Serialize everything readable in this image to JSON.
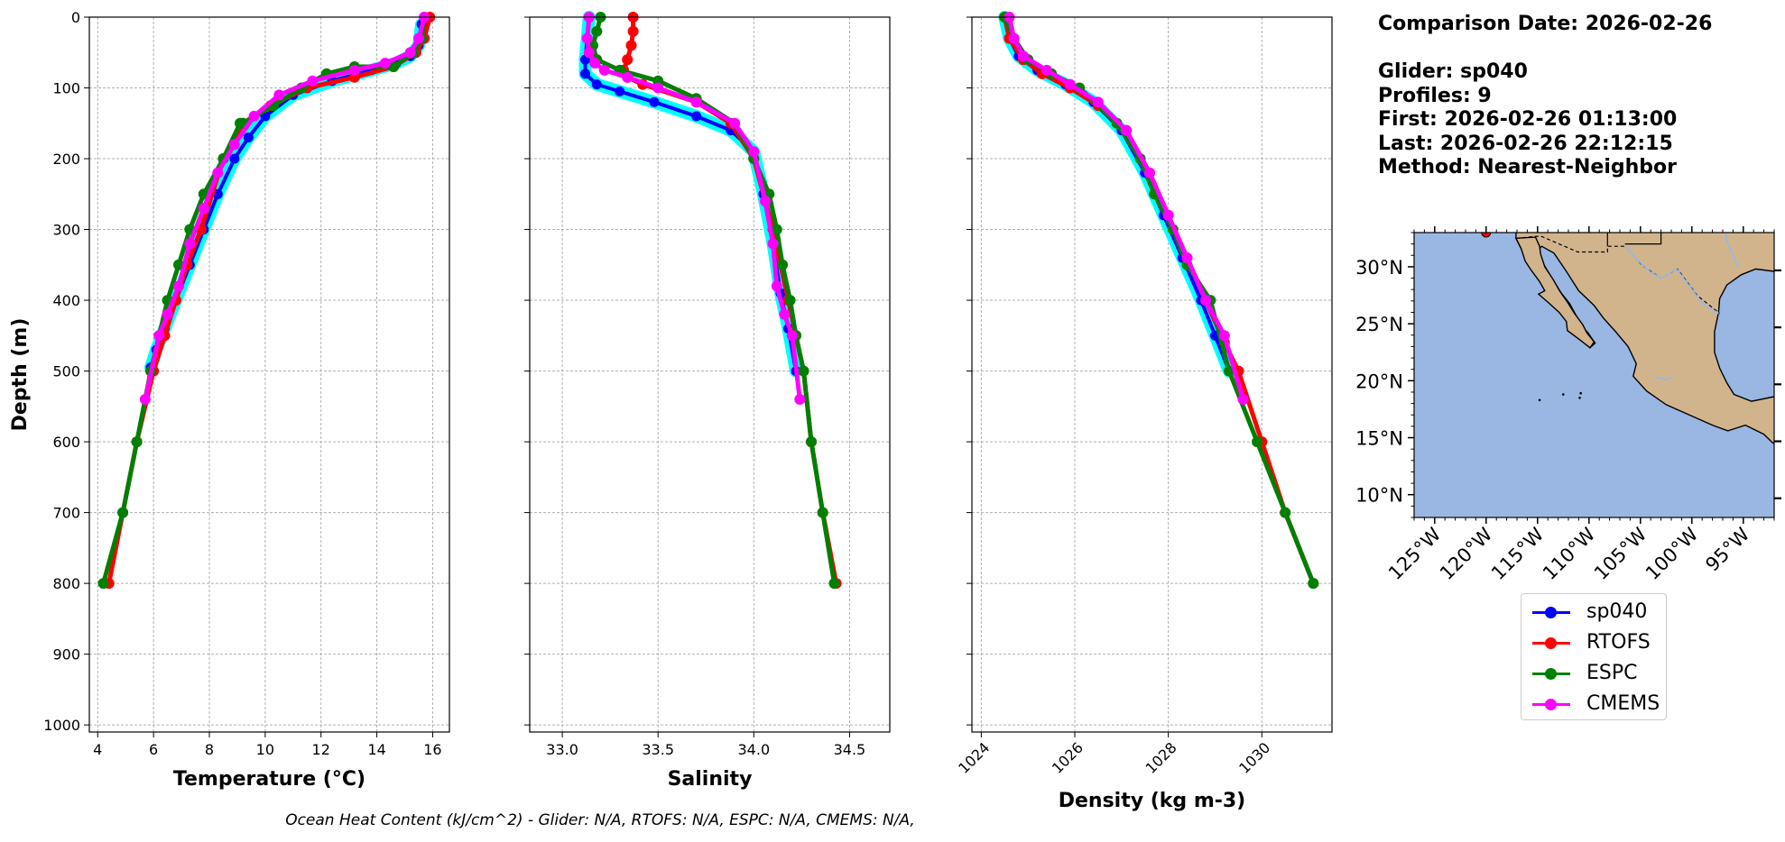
{
  "chart_data": {
    "type": "line",
    "panels": [
      {
        "xlabel": "Temperature (°C)",
        "ylabel": "Depth (m)",
        "xlim": [
          3.7,
          16.6
        ],
        "ylim": [
          1010,
          0
        ],
        "xticks": [
          "4",
          "6",
          "8",
          "10",
          "12",
          "14",
          "16"
        ],
        "yticks": [
          "0",
          "100",
          "200",
          "300",
          "400",
          "500",
          "600",
          "700",
          "800",
          "900",
          "1000"
        ],
        "grid": true,
        "series": [
          {
            "name": "sp040",
            "x": [
              15.6,
              15.5,
              15.2,
              14.7,
              13.8,
              12.4,
              11.0,
              10.0,
              9.4,
              8.9,
              8.3,
              7.8,
              7.3,
              6.8,
              6.4,
              6.1,
              5.9
            ],
            "y": [
              10,
              40,
              55,
              65,
              75,
              90,
              110,
              140,
              170,
              200,
              250,
              300,
              350,
              400,
              440,
              470,
              495
            ]
          },
          {
            "name": "RTOFS",
            "x": [
              15.9,
              15.7,
              15.4,
              14.6,
              13.2,
              11.5,
              10.2,
              9.2,
              8.5,
              7.7,
              7.2,
              6.8,
              6.4,
              6.0,
              5.4,
              4.9,
              4.4
            ],
            "y": [
              0,
              30,
              50,
              70,
              85,
              100,
              125,
              150,
              200,
              300,
              350,
              400,
              450,
              500,
              600,
              700,
              800
            ]
          },
          {
            "name": "ESPC",
            "x": [
              15.7,
              15.6,
              15.3,
              14.6,
              13.2,
              12.2,
              11.3,
              10.3,
              9.2,
              9.1,
              8.5,
              7.8,
              7.3,
              6.9,
              6.5,
              6.2,
              5.9,
              5.4,
              4.9,
              4.2
            ],
            "y": [
              0,
              30,
              50,
              70,
              70,
              80,
              100,
              125,
              150,
              150,
              200,
              250,
              300,
              350,
              400,
              450,
              500,
              600,
              700,
              800
            ]
          },
          {
            "name": "CMEMS",
            "x": [
              15.7,
              15.5,
              15.2,
              14.3,
              13.2,
              11.7,
              10.5,
              9.6,
              8.9,
              8.3,
              7.8,
              7.3,
              6.9,
              6.5,
              6.2,
              5.7
            ],
            "y": [
              0,
              30,
              50,
              65,
              75,
              90,
              110,
              140,
              180,
              220,
              270,
              320,
              380,
              420,
              450,
              540
            ]
          }
        ]
      },
      {
        "xlabel": "Salinity",
        "xlim": [
          32.83,
          34.71
        ],
        "ylim": [
          1010,
          0
        ],
        "xticks": [
          "33.0",
          "33.5",
          "34.0",
          "34.5"
        ],
        "grid": true,
        "series": [
          {
            "name": "sp040",
            "x": [
              33.14,
              33.13,
              33.12,
              33.12,
              33.18,
              33.3,
              33.48,
              33.7,
              33.88,
              34.0,
              34.05,
              34.1,
              34.14,
              34.18,
              34.22
            ],
            "y": [
              0,
              30,
              60,
              80,
              95,
              105,
              120,
              140,
              160,
              190,
              250,
              320,
              390,
              440,
              500
            ]
          },
          {
            "name": "RTOFS",
            "x": [
              33.37,
              33.37,
              33.36,
              33.34,
              33.32,
              33.34,
              33.42,
              33.7,
              33.88,
              34.0,
              34.1,
              34.18,
              34.22,
              34.26,
              34.3,
              34.36,
              34.43
            ],
            "y": [
              0,
              20,
              40,
              60,
              75,
              85,
              95,
              120,
              150,
              200,
              300,
              400,
              450,
              500,
              600,
              700,
              800
            ]
          },
          {
            "name": "ESPC",
            "x": [
              33.2,
              33.18,
              33.16,
              33.18,
              33.3,
              33.5,
              33.7,
              33.9,
              34.0,
              34.08,
              34.12,
              34.15,
              34.19,
              34.22,
              34.26,
              34.3,
              34.36,
              34.42
            ],
            "y": [
              0,
              20,
              40,
              60,
              75,
              90,
              115,
              150,
              200,
              250,
              300,
              350,
              400,
              450,
              500,
              600,
              700,
              800
            ]
          },
          {
            "name": "CMEMS",
            "x": [
              33.14,
              33.13,
              33.14,
              33.17,
              33.22,
              33.34,
              33.5,
              33.7,
              33.9,
              34.0,
              34.06,
              34.1,
              34.12,
              34.16,
              34.2,
              34.24
            ],
            "y": [
              0,
              30,
              50,
              65,
              75,
              85,
              100,
              120,
              150,
              190,
              260,
              320,
              380,
              420,
              450,
              540
            ]
          }
        ]
      },
      {
        "xlabel": "Density (kg m-3)",
        "xlim": [
          1023.8,
          1031.5
        ],
        "ylim": [
          1010,
          0
        ],
        "xticks": [
          "1024",
          "1026",
          "1028",
          "1030"
        ],
        "grid": true,
        "series": [
          {
            "name": "sp040",
            "x": [
              1024.5,
              1024.6,
              1024.8,
              1025.2,
              1025.8,
              1026.4,
              1027.0,
              1027.5,
              1027.9,
              1028.3,
              1028.7,
              1029.0,
              1029.3
            ],
            "y": [
              0,
              30,
              55,
              75,
              95,
              120,
              160,
              220,
              280,
              340,
              400,
              450,
              500
            ]
          },
          {
            "name": "RTOFS",
            "x": [
              1024.5,
              1024.6,
              1024.9,
              1025.3,
              1025.9,
              1026.5,
              1027.1,
              1027.6,
              1028.0,
              1028.4,
              1028.8,
              1029.2,
              1029.5,
              1030.0,
              1030.5,
              1031.1
            ],
            "y": [
              0,
              30,
              60,
              80,
              100,
              125,
              160,
              220,
              280,
              340,
              400,
              460,
              500,
              600,
              700,
              800
            ]
          },
          {
            "name": "ESPC",
            "x": [
              1024.5,
              1024.7,
              1025.0,
              1025.5,
              1026.1,
              1026.9,
              1027.4,
              1027.7,
              1028.1,
              1028.4,
              1028.9,
              1029.3,
              1029.9,
              1030.5,
              1031.1
            ],
            "y": [
              0,
              30,
              60,
              80,
              100,
              150,
              200,
              250,
              300,
              350,
              400,
              500,
              600,
              700,
              800
            ]
          },
          {
            "name": "CMEMS",
            "x": [
              1024.6,
              1024.7,
              1024.9,
              1025.4,
              1025.9,
              1026.5,
              1027.1,
              1027.6,
              1028.0,
              1028.4,
              1028.8,
              1029.2,
              1029.6
            ],
            "y": [
              0,
              30,
              55,
              75,
              95,
              120,
              160,
              220,
              280,
              340,
              400,
              450,
              540
            ]
          }
        ]
      }
    ],
    "map": {
      "lon_range": [
        -127,
        -92
      ],
      "lat_range": [
        8,
        33
      ],
      "lon_ticks": [
        "125°W",
        "120°W",
        "115°W",
        "110°W",
        "105°W",
        "100°W",
        "95°W"
      ],
      "lat_ticks": [
        "30°N",
        "25°N",
        "20°N",
        "15°N",
        "10°N"
      ],
      "glider_position": {
        "lon": -120.0,
        "lat": 33.0
      },
      "ocean_color": "#99b7e2",
      "land_color": "#d2b48c"
    },
    "legend": [
      {
        "name": "sp040",
        "color": "#0000ff"
      },
      {
        "name": "RTOFS",
        "color": "#ff0000"
      },
      {
        "name": "ESPC",
        "color": "#008000"
      },
      {
        "name": "CMEMS",
        "color": "#ff00ff"
      }
    ],
    "legend_placement": "below map",
    "glider_band_color": "#00ffff"
  },
  "info": {
    "comparison_date": "Comparison Date: 2026-02-26",
    "glider": "Glider: sp040",
    "profiles": "Profiles: 9",
    "first": "First: 2026-02-26 01:13:00",
    "last": "Last: 2026-02-26 22:12:15",
    "method": "Method: Nearest-Neighbor"
  },
  "footer": "Ocean Heat Content (kJ/cm^2) - Glider: N/A,  RTOFS: N/A,  ESPC: N/A,  CMEMS: N/A,"
}
